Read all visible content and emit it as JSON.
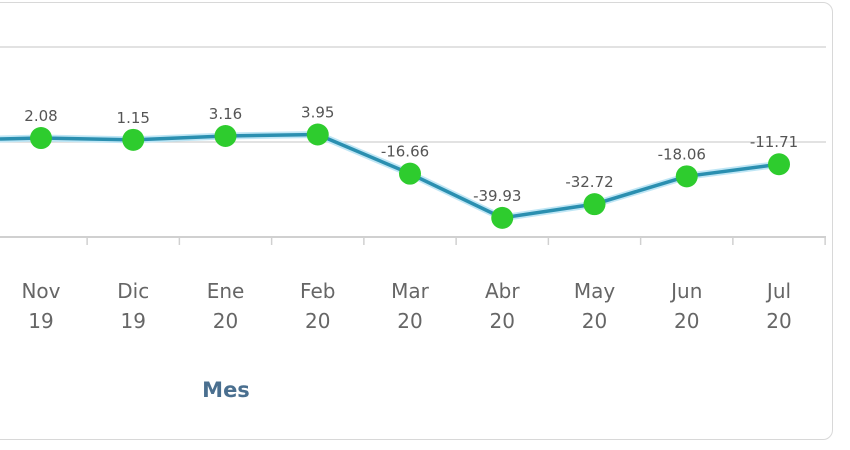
{
  "chart_data": {
    "type": "line",
    "categories": [
      "Nov 19",
      "Dic 19",
      "Ene 20",
      "Feb 20",
      "Mar 20",
      "Abr 20",
      "May 20",
      "Jun 20",
      "Jul 20"
    ],
    "series": [
      {
        "values": [
          2.08,
          1.15,
          3.16,
          3.95,
          -16.66,
          -39.93,
          -32.72,
          -18.06,
          -11.71
        ]
      }
    ],
    "data_labels": [
      "2.08",
      "1.15",
      "3.16",
      "3.95",
      "-16.66",
      "-39.93",
      "-32.72",
      "-18.06",
      "-11.71"
    ],
    "xlabel": "Mes",
    "ylim": [
      -50,
      50
    ],
    "gridlines_y": [
      -50,
      0,
      50
    ],
    "grid": true,
    "colors": {
      "line": "#2a8fb0",
      "marker": "#2ecc2e",
      "grid": "#d0d0d0"
    }
  }
}
